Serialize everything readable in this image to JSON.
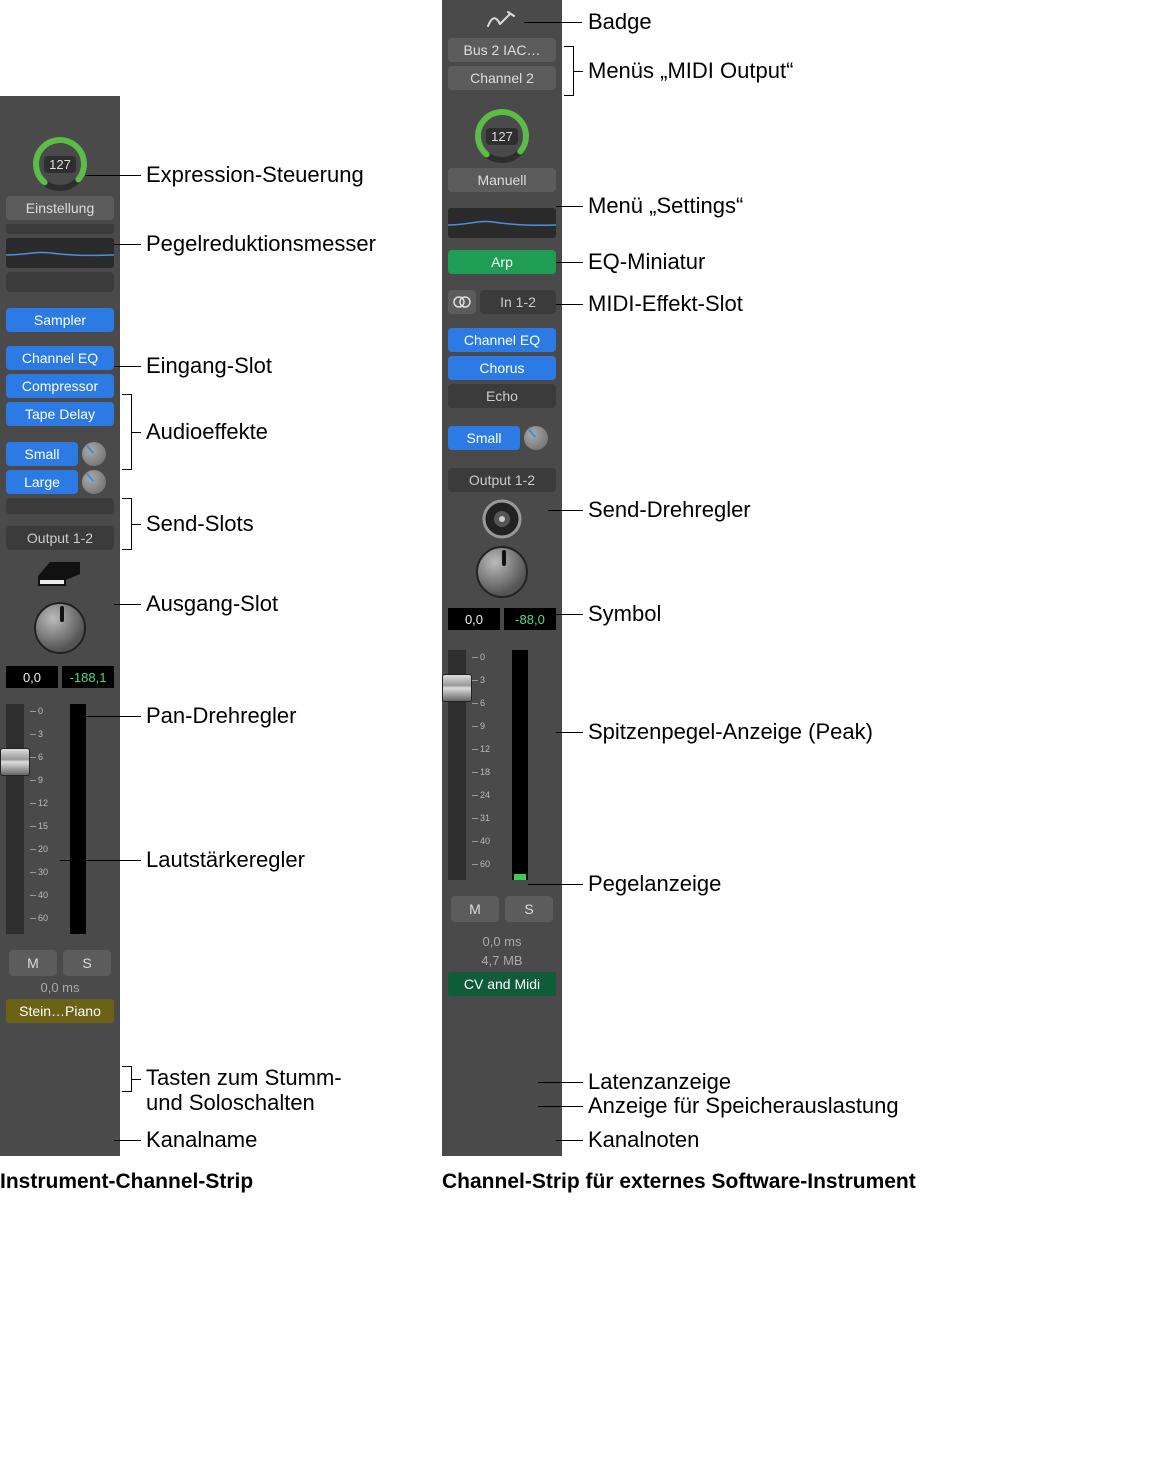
{
  "captions": {
    "strip1": "Instrument-Channel-Strip",
    "strip2": "Channel-Strip für externes Software-Instrument"
  },
  "labels": {
    "expression": "Expression-Steuerung",
    "gainReduction": "Pegelreduktionsmesser",
    "inputSlot": "Eingang-Slot",
    "audioFx": "Audioeffekte",
    "sendSlots": "Send-Slots",
    "outputSlot": "Ausgang-Slot",
    "panKnob": "Pan-Drehregler",
    "volumeFader": "Lautstärkeregler",
    "muteSoloLine1": "Tasten zum Stumm-",
    "muteSoloLine2": "und Soloschalten",
    "channelName": "Kanalname",
    "badge": "Badge",
    "midiOutput": "Menüs „MIDI Output“",
    "settings": "Menü „Settings“",
    "eqThumb": "EQ-Miniatur",
    "midiFxSlot": "MIDI-Effekt-Slot",
    "sendKnob": "Send-Drehregler",
    "symbol": "Symbol",
    "peak": "Spitzenpegel-Anzeige (Peak)",
    "meter": "Pegelanzeige",
    "latencyDisplay": "Latenzanzeige",
    "memoryDisplay": "Anzeige für Speicherauslastung",
    "channelNotes": "Kanalnoten"
  },
  "strip1": {
    "expressionValue": "127",
    "settingBtn": "Einstellung",
    "input": "Sampler",
    "fx": [
      "Channel EQ",
      "Compressor",
      "Tape Delay"
    ],
    "sends": [
      "Small",
      "Large"
    ],
    "output": "Output 1-2",
    "levelLeft": "0,0",
    "levelRight": "-188,1",
    "mute": "M",
    "solo": "S",
    "latency": "0,0 ms",
    "name": "Stein…Piano",
    "nameBg": "#6b6215",
    "faderPos": 44,
    "scaleMarks": [
      "0",
      "3",
      "6",
      "9",
      "12",
      "15",
      "20",
      "30",
      "40",
      "60"
    ]
  },
  "strip2": {
    "midiOut1": "Bus 2 IAC…",
    "midiOut2": "Channel 2",
    "expressionValue": "127",
    "settingBtn": "Manuell",
    "midiFx": "Arp",
    "inSlot": "In 1-2",
    "fx": [
      "Channel EQ",
      "Chorus",
      "Echo"
    ],
    "sends": [
      "Small"
    ],
    "output": "Output 1-2",
    "levelLeft": "0,0",
    "levelRight": "-88,0",
    "mute": "M",
    "solo": "S",
    "latency": "0,0 ms",
    "memory": "4,7 MB",
    "name": "CV and Midi",
    "nameBg": "#0e5c38",
    "faderPos": 24,
    "scaleMarks": [
      "0",
      "3",
      "6",
      "9",
      "12",
      "18",
      "24",
      "31",
      "40",
      "60"
    ]
  },
  "colors": {
    "arcGreen": "#5dbb4a",
    "eqLine": "#4a90d9"
  }
}
